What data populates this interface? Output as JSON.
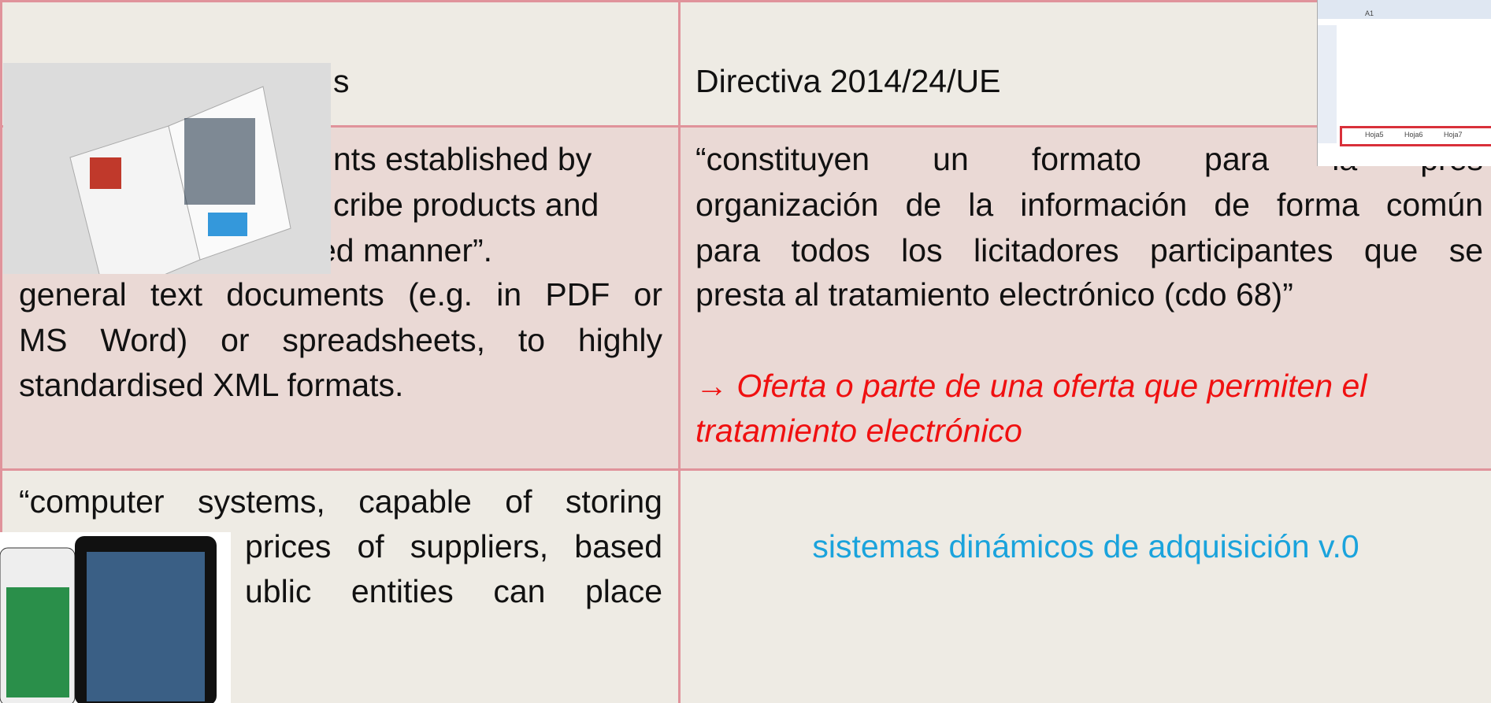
{
  "table": {
    "header": {
      "left": "s",
      "right": "Directiva 2014/24/UE"
    },
    "row1": {
      "left": [
        "nts established by",
        "cribe products and",
        "ed manner”.",
        "general text documents (e.g. in PDF or",
        "MS Word) or spreadsheets, to highly",
        "standardised XML formats."
      ],
      "right": [
        "“constituyen un formato para la pres",
        "organización de la información de forma común",
        "para todos los licitadores participantes que se",
        "presta al tratamiento electrónico (cdo 68)”"
      ],
      "note": [
        "→ Oferta o parte de una oferta que permiten el",
        "tratamiento electrónico"
      ]
    },
    "row2": {
      "left": [
        "“computer systems, capable of storing",
        "prices of suppliers, based",
        "ublic entities can place"
      ],
      "right": "sistemas dinámicos de adquisición v.0"
    }
  },
  "spreadsheet": {
    "cell": "A1",
    "tabs": [
      "Hoja5",
      "Hoja6",
      "Hoja7"
    ]
  }
}
